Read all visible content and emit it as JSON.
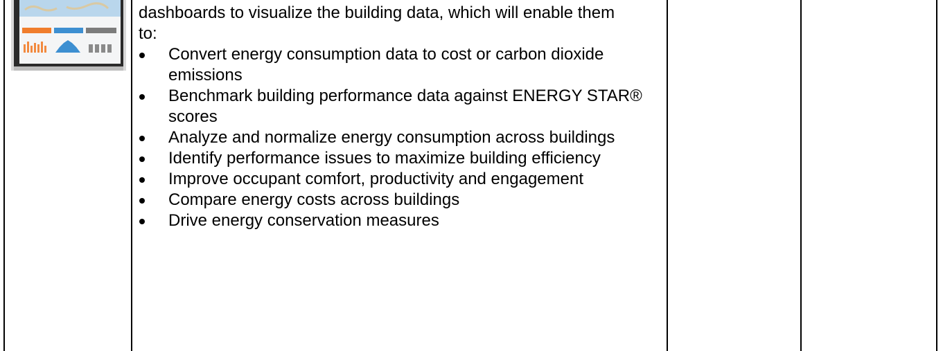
{
  "table": {
    "rows": [
      {
        "cells": [
          {
            "intro": "dashboards to visualize the building data, which will enable them to:",
            "bullets": [
              "Convert energy consumption data to cost or carbon dioxide emissions",
              "Benchmark building performance data against ENERGY STAR® scores",
              "Analyze and normalize energy consumption across buildings",
              "Identify performance issues to maximize building efficiency",
              "Improve occupant comfort, productivity and engagement",
              "Compare energy costs across buildings",
              "Drive energy conservation measures"
            ]
          }
        ]
      }
    ]
  }
}
